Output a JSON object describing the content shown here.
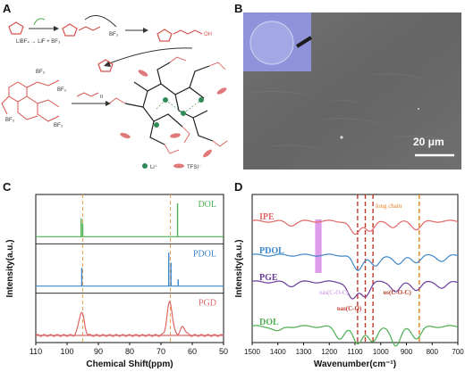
{
  "panels": {
    "a": "A",
    "b": "B",
    "c": "C",
    "d": "D"
  },
  "panel_a": {
    "reaction_1": "LiBF₄ → LiF + BF₃",
    "bf3": "BF₃",
    "oh_label": "OH",
    "n_label": "n",
    "legend_li": "Li⁺",
    "legend_tfsi": "TFSI⁻",
    "colors": {
      "li": "#2e8b57",
      "tfsi": "#e07a7a",
      "ring": "#d9534f",
      "chain": "#333333"
    }
  },
  "panel_b": {
    "scale_label": "20 μm",
    "colors": {
      "background": "#6b6b6b",
      "inset": "#8f93d9"
    }
  },
  "chart_data": [
    {
      "panel": "C",
      "type": "line",
      "title": "",
      "xlabel": "Chemical Shift(ppm)",
      "ylabel": "Intensity(a.u.)",
      "xlim": [
        110,
        50
      ],
      "x_ticks": [
        110,
        100,
        90,
        80,
        70,
        60,
        50
      ],
      "reference_lines": [
        95,
        67
      ],
      "grid": false,
      "series": [
        {
          "name": "DOL",
          "color": "#4caf50",
          "peaks": [
            [
              95.5,
              0.55
            ],
            [
              95.0,
              0.4
            ],
            [
              64.7,
              1.0
            ]
          ]
        },
        {
          "name": "PDOL",
          "color": "#3f87c9",
          "peaks": [
            [
              95.3,
              0.55
            ],
            [
              67.5,
              1.0
            ],
            [
              66.8,
              0.7
            ],
            [
              64.5,
              0.2
            ]
          ]
        },
        {
          "name": "PGD",
          "color": "#e06666",
          "peaks": [
            [
              95.4,
              0.7
            ],
            [
              67.2,
              1.0
            ],
            [
              63.0,
              0.25
            ]
          ]
        }
      ]
    },
    {
      "panel": "D",
      "type": "line",
      "title": "",
      "xlabel": "Wavenumber(cm⁻¹)",
      "ylabel": "Intensity(a.u.)",
      "xlim": [
        1500,
        700
      ],
      "x_ticks": [
        1500,
        1400,
        1300,
        1200,
        1100,
        1000,
        900,
        800,
        700
      ],
      "reference_lines": [
        1090,
        1060,
        1030,
        850
      ],
      "grid": false,
      "series": [
        {
          "name": "IPE",
          "color": "#e06666"
        },
        {
          "name": "PDOL",
          "color": "#3f87c9"
        },
        {
          "name": "PGE",
          "color": "#6a3d9a"
        },
        {
          "name": "DOL",
          "color": "#4caf50"
        }
      ],
      "annotations": {
        "long_chain": "long chain",
        "vas_coc": "υas(C-O-C)",
        "vas_co": "υas(C-O)",
        "vs_coc": "υs(C-O-C)"
      }
    }
  ]
}
